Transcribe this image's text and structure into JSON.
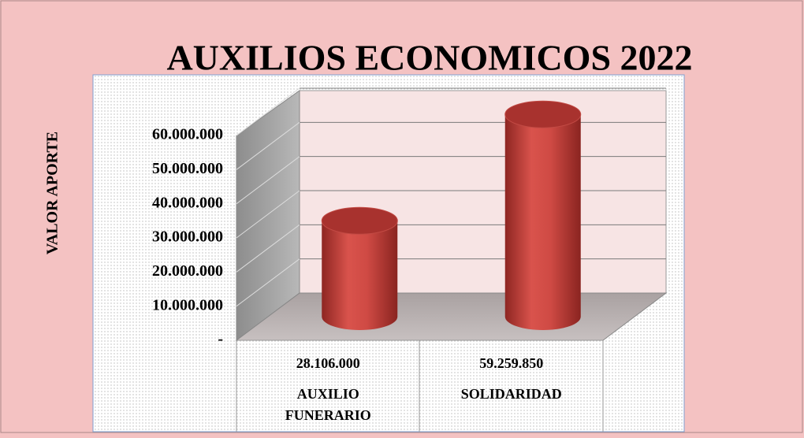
{
  "chart_data": {
    "type": "bar3d",
    "title": "AUXILIOS ECONOMICOS 2022",
    "y_label": "VALOR APORTE",
    "categories": [
      "AUXILIO FUNERARIO",
      "SOLIDARIDAD"
    ],
    "values": [
      28106000,
      59259850
    ],
    "value_labels": [
      "28.106.000",
      "59.259.850"
    ],
    "color": "#c9413c",
    "ylim": [
      0,
      60000000
    ],
    "yticks": [
      {
        "value": 0,
        "label": "-"
      },
      {
        "value": 10000000,
        "label": "10.000.000"
      },
      {
        "value": 20000000,
        "label": "20.000.000"
      },
      {
        "value": 30000000,
        "label": "30.000.000"
      },
      {
        "value": 40000000,
        "label": "40.000.000"
      },
      {
        "value": 50000000,
        "label": "50.000.000"
      },
      {
        "value": 60000000,
        "label": "60.000.000"
      }
    ],
    "grid": true
  }
}
